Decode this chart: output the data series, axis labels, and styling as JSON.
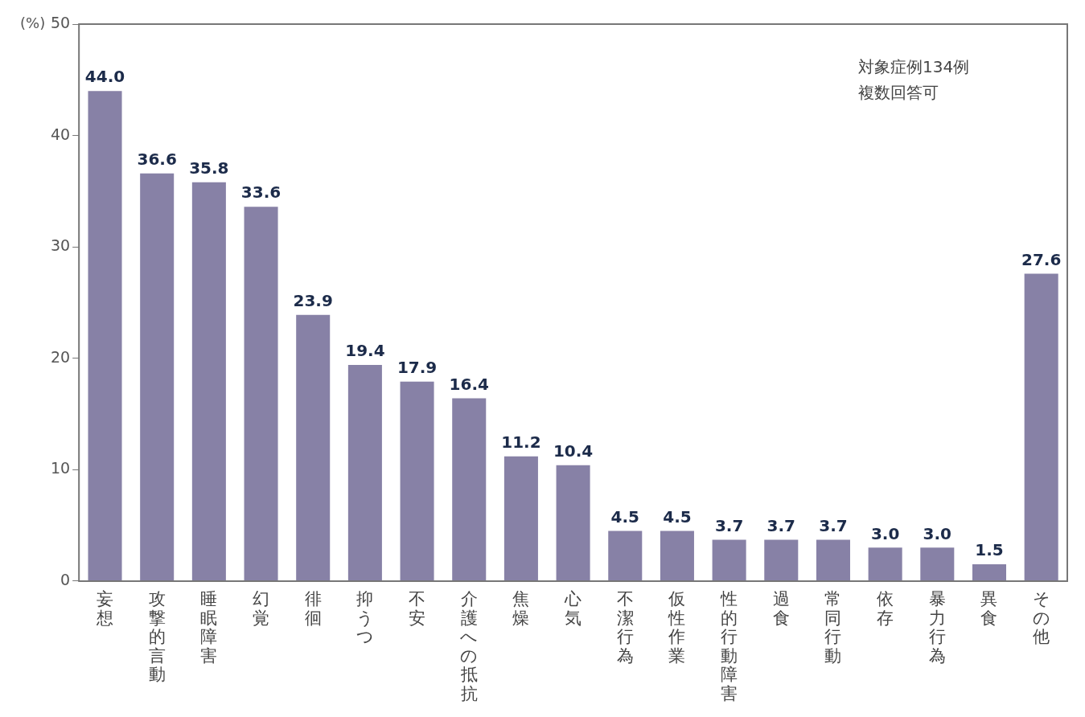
{
  "chart_data": {
    "type": "bar",
    "ylabel": "(%)",
    "categories": [
      "妄想",
      "攻撃的言動",
      "睡眠障害",
      "幻覚",
      "徘徊",
      "抑うつ",
      "不安",
      "介護への抵抗",
      "焦燥",
      "心気",
      "不潔行為",
      "仮性作業",
      "性的行動障害",
      "過食",
      "常同行動",
      "依存",
      "暴力行為",
      "異食",
      "その他"
    ],
    "values": [
      44.0,
      36.6,
      35.8,
      33.6,
      23.9,
      19.4,
      17.9,
      16.4,
      11.2,
      10.4,
      4.5,
      4.5,
      3.7,
      3.7,
      3.7,
      3.0,
      3.0,
      1.5,
      27.6
    ],
    "color": "#8781a6",
    "value_labels": [
      "44.0",
      "36.6",
      "35.8",
      "33.6",
      "23.9",
      "19.4",
      "17.9",
      "16.4",
      "11.2",
      "10.4",
      "4.5",
      "4.5",
      "3.7",
      "3.7",
      "3.7",
      "3.0",
      "3.0",
      "1.5",
      "27.6"
    ],
    "ylim": [
      0,
      50
    ],
    "yticks": [
      0,
      10,
      20,
      30,
      40,
      50
    ],
    "grid": false,
    "legend": false,
    "annotations": [
      "対象症例134例",
      "複数回答可"
    ]
  }
}
